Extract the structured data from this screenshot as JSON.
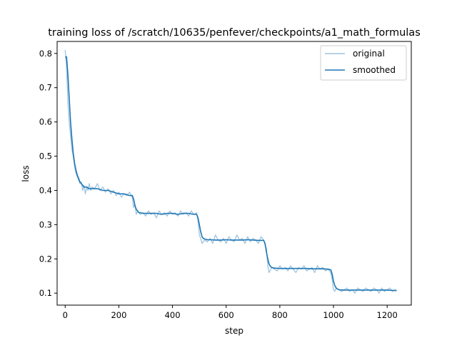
{
  "chart_data": {
    "type": "line",
    "title": "training loss of /scratch/10635/penfever/checkpoints/a1_math_formulas",
    "xlabel": "step",
    "ylabel": "loss",
    "xlim": [
      -30,
      1290
    ],
    "ylim": [
      0.065,
      0.835
    ],
    "xticks": [
      0,
      200,
      400,
      600,
      800,
      1000,
      1200
    ],
    "yticks": [
      0.1,
      0.2,
      0.3,
      0.4,
      0.5,
      0.6,
      0.7,
      0.8
    ],
    "legend_position": "top-right",
    "series": [
      {
        "name": "original",
        "color": "#9ec4e0",
        "x": [
          0,
          5,
          10,
          15,
          20,
          25,
          30,
          35,
          40,
          45,
          50,
          55,
          60,
          65,
          70,
          75,
          80,
          85,
          90,
          95,
          100,
          110,
          120,
          130,
          140,
          150,
          160,
          170,
          180,
          190,
          200,
          210,
          220,
          230,
          240,
          250,
          255,
          260,
          265,
          270,
          280,
          290,
          300,
          310,
          320,
          330,
          340,
          350,
          360,
          370,
          380,
          390,
          400,
          410,
          420,
          430,
          440,
          450,
          460,
          470,
          480,
          490,
          495,
          500,
          505,
          510,
          520,
          530,
          540,
          550,
          560,
          570,
          580,
          590,
          600,
          610,
          620,
          630,
          640,
          650,
          660,
          670,
          680,
          690,
          700,
          710,
          720,
          730,
          740,
          745,
          750,
          755,
          760,
          770,
          780,
          790,
          800,
          810,
          820,
          830,
          840,
          850,
          860,
          870,
          880,
          890,
          900,
          910,
          920,
          930,
          940,
          950,
          960,
          970,
          980,
          990,
          995,
          1000,
          1005,
          1010,
          1020,
          1030,
          1040,
          1050,
          1060,
          1070,
          1080,
          1090,
          1100,
          1110,
          1120,
          1130,
          1140,
          1150,
          1160,
          1170,
          1180,
          1190,
          1200,
          1210,
          1220,
          1230,
          1235
        ],
        "values": [
          0.81,
          0.76,
          0.66,
          0.6,
          0.56,
          0.52,
          0.5,
          0.47,
          0.45,
          0.44,
          0.43,
          0.42,
          0.425,
          0.4,
          0.415,
          0.39,
          0.41,
          0.4,
          0.42,
          0.4,
          0.41,
          0.405,
          0.42,
          0.4,
          0.41,
          0.395,
          0.405,
          0.39,
          0.4,
          0.385,
          0.395,
          0.38,
          0.39,
          0.385,
          0.395,
          0.38,
          0.35,
          0.36,
          0.33,
          0.34,
          0.33,
          0.335,
          0.325,
          0.34,
          0.33,
          0.335,
          0.32,
          0.34,
          0.33,
          0.335,
          0.325,
          0.34,
          0.33,
          0.335,
          0.325,
          0.34,
          0.33,
          0.335,
          0.325,
          0.34,
          0.33,
          0.335,
          0.31,
          0.27,
          0.26,
          0.245,
          0.255,
          0.25,
          0.26,
          0.245,
          0.27,
          0.255,
          0.25,
          0.26,
          0.245,
          0.265,
          0.255,
          0.25,
          0.27,
          0.255,
          0.26,
          0.245,
          0.265,
          0.25,
          0.26,
          0.255,
          0.245,
          0.265,
          0.255,
          0.24,
          0.23,
          0.18,
          0.16,
          0.175,
          0.17,
          0.165,
          0.18,
          0.17,
          0.175,
          0.165,
          0.18,
          0.17,
          0.16,
          0.175,
          0.17,
          0.18,
          0.165,
          0.17,
          0.175,
          0.16,
          0.18,
          0.17,
          0.175,
          0.165,
          0.17,
          0.16,
          0.14,
          0.11,
          0.105,
          0.115,
          0.11,
          0.105,
          0.11,
          0.115,
          0.105,
          0.11,
          0.1,
          0.115,
          0.11,
          0.105,
          0.115,
          0.11,
          0.105,
          0.115,
          0.11,
          0.1,
          0.115,
          0.105,
          0.11,
          0.115,
          0.105,
          0.11,
          0.105
        ]
      },
      {
        "name": "smoothed",
        "color": "#1f77b4",
        "x": [
          0,
          5,
          10,
          15,
          20,
          25,
          30,
          35,
          40,
          45,
          50,
          55,
          60,
          65,
          70,
          80,
          90,
          100,
          120,
          140,
          160,
          180,
          200,
          220,
          240,
          250,
          255,
          260,
          265,
          270,
          275,
          280,
          290,
          300,
          320,
          340,
          360,
          380,
          400,
          420,
          440,
          460,
          480,
          490,
          495,
          500,
          505,
          510,
          515,
          520,
          530,
          540,
          560,
          580,
          600,
          620,
          640,
          660,
          680,
          700,
          720,
          740,
          745,
          750,
          755,
          760,
          765,
          770,
          780,
          800,
          820,
          840,
          860,
          880,
          900,
          920,
          940,
          960,
          980,
          990,
          995,
          1000,
          1005,
          1010,
          1015,
          1020,
          1040,
          1060,
          1080,
          1100,
          1120,
          1140,
          1160,
          1180,
          1200,
          1220,
          1235
        ],
        "values": [
          0.79,
          0.79,
          0.74,
          0.67,
          0.6,
          0.55,
          0.51,
          0.48,
          0.46,
          0.445,
          0.435,
          0.425,
          0.42,
          0.415,
          0.41,
          0.41,
          0.405,
          0.405,
          0.405,
          0.4,
          0.4,
          0.395,
          0.39,
          0.39,
          0.385,
          0.385,
          0.375,
          0.355,
          0.345,
          0.34,
          0.335,
          0.335,
          0.333,
          0.333,
          0.333,
          0.333,
          0.33,
          0.333,
          0.333,
          0.33,
          0.333,
          0.333,
          0.33,
          0.33,
          0.32,
          0.3,
          0.28,
          0.265,
          0.26,
          0.258,
          0.256,
          0.256,
          0.255,
          0.255,
          0.256,
          0.255,
          0.255,
          0.255,
          0.256,
          0.255,
          0.254,
          0.254,
          0.245,
          0.22,
          0.2,
          0.185,
          0.178,
          0.175,
          0.173,
          0.172,
          0.172,
          0.172,
          0.172,
          0.172,
          0.172,
          0.171,
          0.171,
          0.171,
          0.17,
          0.168,
          0.155,
          0.135,
          0.122,
          0.115,
          0.112,
          0.11,
          0.109,
          0.109,
          0.109,
          0.109,
          0.109,
          0.109,
          0.109,
          0.109,
          0.109,
          0.108,
          0.108
        ]
      }
    ]
  }
}
